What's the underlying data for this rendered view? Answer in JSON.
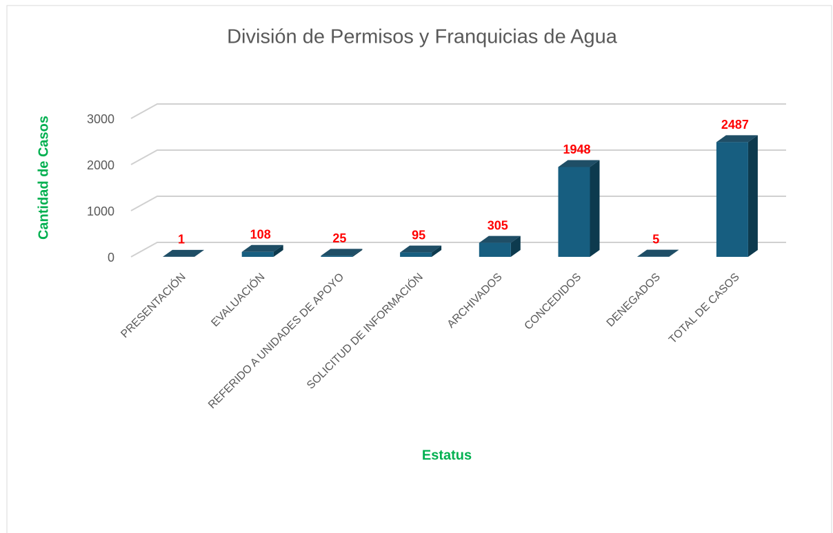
{
  "chart_data": {
    "type": "bar",
    "title": "División de Permisos y Franquicias de Agua",
    "x_label": "Estatus",
    "y_label": "Cantidad de Casos",
    "categories": [
      "PRESENTACIÓN",
      "EVALUACIÓN",
      "REFERIDO A UNIDADES DE APOYO",
      "SOLICITUD DE INFORMACIÓN",
      "ARCHIVADOS",
      "CONCEDIDOS",
      "DENEGADOS",
      "TOTAL DE CASOS"
    ],
    "values": [
      1,
      108,
      25,
      95,
      305,
      1948,
      5,
      2487
    ],
    "color": "#175e80",
    "ylim": [
      0,
      3000
    ],
    "yticks": [
      0,
      1000,
      2000,
      3000
    ],
    "grid": true
  }
}
